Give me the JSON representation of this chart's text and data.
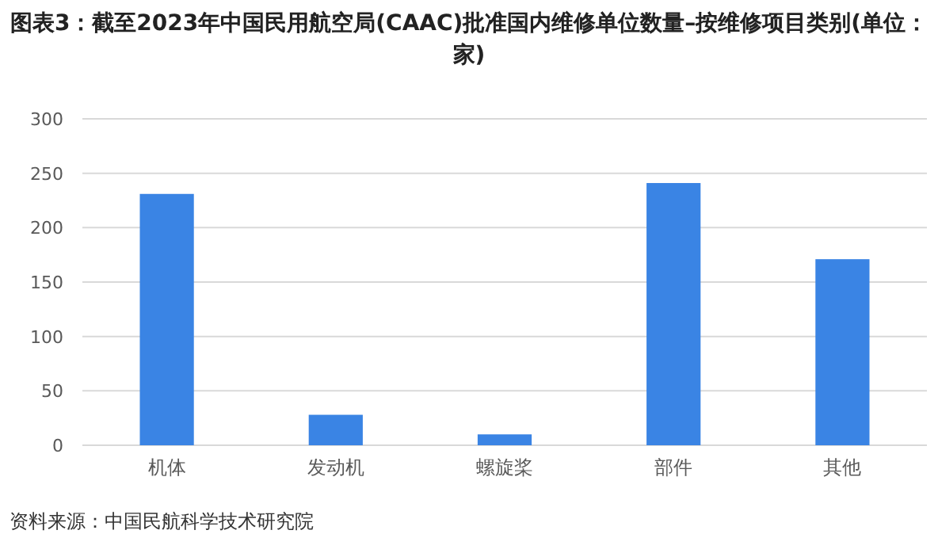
{
  "chart_data": {
    "type": "bar",
    "title": "图表3：截至2023年中国民用航空局(CAAC)批准国内维修单位数量–按维修项目类别(单位：家)",
    "categories": [
      "机体",
      "发动机",
      "螺旋桨",
      "部件",
      "其他"
    ],
    "values": [
      231,
      28,
      10,
      241,
      171
    ],
    "color": "#3a84e4",
    "ylim": [
      0,
      300
    ],
    "yticks": [
      0,
      50,
      100,
      150,
      200,
      250,
      300
    ],
    "grid": "y",
    "annotations": [
      "资料来源：中国民航科学技术研究院"
    ]
  }
}
